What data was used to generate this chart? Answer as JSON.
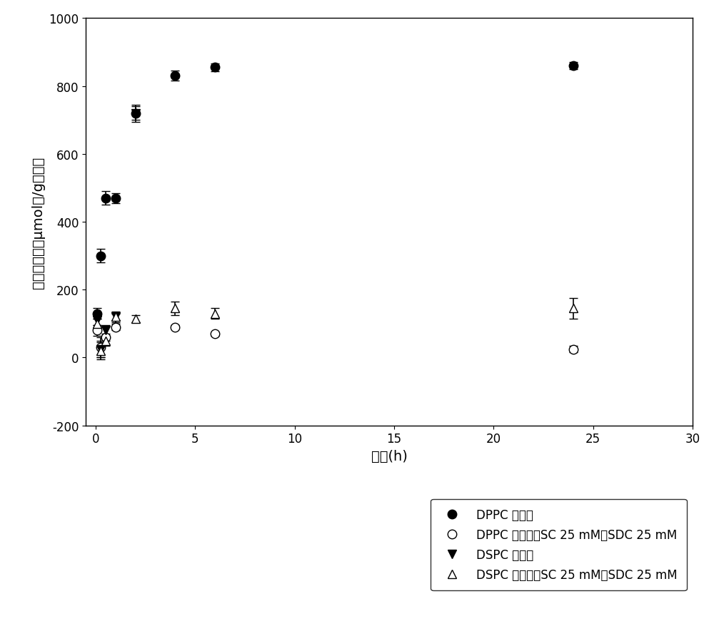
{
  "title": "",
  "xlabel": "时间(h)",
  "ylabel": "氨捕获能力（μmol氨/g脂质）",
  "xlim": [
    -0.5,
    30
  ],
  "ylim": [
    -200,
    1000
  ],
  "xticks": [
    0,
    5,
    10,
    15,
    20,
    25,
    30
  ],
  "yticks": [
    -200,
    0,
    200,
    400,
    600,
    800,
    1000
  ],
  "DPPC_filled_x": [
    0.083,
    0.25,
    0.5,
    1.0,
    2.0,
    4.0,
    6.0,
    24.0
  ],
  "DPPC_filled_y": [
    130,
    300,
    470,
    470,
    720,
    830,
    855,
    860
  ],
  "DPPC_filled_yerr": [
    15,
    20,
    20,
    15,
    20,
    15,
    12,
    10
  ],
  "DPPC_open_x": [
    0.083,
    0.25,
    0.5,
    1.0,
    4.0,
    6.0,
    24.0
  ],
  "DPPC_open_y": [
    80,
    30,
    60,
    90,
    90,
    70,
    25
  ],
  "DPPC_open_yerr": [
    15,
    30,
    10,
    10,
    5,
    5,
    10
  ],
  "DSPC_filled_x": [
    0.083,
    0.25,
    0.5,
    1.0,
    2.0
  ],
  "DSPC_filled_y": [
    110,
    25,
    80,
    120,
    720
  ],
  "DSPC_filled_yerr": [
    15,
    25,
    15,
    15,
    25
  ],
  "DSPC_open_x": [
    0.083,
    0.25,
    0.5,
    1.0,
    2.0,
    4.0,
    6.0,
    24.0
  ],
  "DSPC_open_y": [
    100,
    20,
    50,
    120,
    115,
    145,
    130,
    145
  ],
  "DSPC_open_yerr": [
    15,
    25,
    15,
    10,
    10,
    20,
    15,
    30
  ],
  "legend_labels": [
    "DPPC 脂质体",
    "DPPC 脂质体+SC 25 mM + SDC 25 mM",
    "DSPC 脂质体",
    "DSPC 脂质体+SC 25 mM + SDC 25 mM"
  ],
  "marker_size": 9,
  "capsize": 4,
  "background_color": "#ffffff",
  "text_color": "#000000",
  "fontsize_axis_label": 14,
  "fontsize_tick": 12,
  "fontsize_legend": 12
}
